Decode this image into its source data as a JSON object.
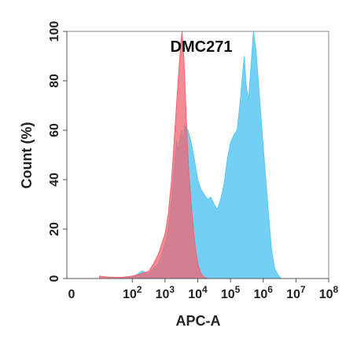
{
  "chart_data": {
    "type": "area",
    "title": "DMC271",
    "xlabel": "APC-A",
    "ylabel": "Count  (%)",
    "xscale": "log",
    "xlim_log10": [
      0,
      8
    ],
    "ylim": [
      0,
      100
    ],
    "x_ticks": [
      {
        "base": "0",
        "exp": ""
      },
      {
        "base": "10",
        "exp": "2"
      },
      {
        "base": "10",
        "exp": "3"
      },
      {
        "base": "10",
        "exp": "4"
      },
      {
        "base": "10",
        "exp": "5"
      },
      {
        "base": "10",
        "exp": "6"
      },
      {
        "base": "10",
        "exp": "7"
      },
      {
        "base": "10",
        "exp": "8"
      }
    ],
    "y_ticks": [
      "0",
      "20",
      "40",
      "60",
      "80",
      "100"
    ],
    "series": [
      {
        "color": "#5bc8f2",
        "points": [
          [
            1.0,
            0
          ],
          [
            1.5,
            0
          ],
          [
            2.0,
            0.5
          ],
          [
            2.3,
            3
          ],
          [
            2.5,
            2
          ],
          [
            2.65,
            4
          ],
          [
            2.8,
            6
          ],
          [
            2.9,
            10
          ],
          [
            3.0,
            14
          ],
          [
            3.1,
            20
          ],
          [
            3.2,
            32
          ],
          [
            3.3,
            48
          ],
          [
            3.35,
            56
          ],
          [
            3.4,
            52
          ],
          [
            3.5,
            60
          ],
          [
            3.55,
            56
          ],
          [
            3.6,
            62
          ],
          [
            3.7,
            60
          ],
          [
            3.8,
            55
          ],
          [
            3.9,
            48
          ],
          [
            4.0,
            40
          ],
          [
            4.1,
            36
          ],
          [
            4.2,
            34
          ],
          [
            4.3,
            32
          ],
          [
            4.4,
            33
          ],
          [
            4.5,
            30
          ],
          [
            4.6,
            28
          ],
          [
            4.7,
            32
          ],
          [
            4.8,
            38
          ],
          [
            4.9,
            48
          ],
          [
            5.0,
            55
          ],
          [
            5.1,
            58
          ],
          [
            5.2,
            60
          ],
          [
            5.3,
            72
          ],
          [
            5.35,
            80
          ],
          [
            5.42,
            90
          ],
          [
            5.48,
            78
          ],
          [
            5.55,
            72
          ],
          [
            5.62,
            85
          ],
          [
            5.7,
            100
          ],
          [
            5.78,
            92
          ],
          [
            5.85,
            80
          ],
          [
            5.95,
            62
          ],
          [
            6.05,
            45
          ],
          [
            6.15,
            28
          ],
          [
            6.25,
            12
          ],
          [
            6.35,
            4
          ],
          [
            6.45,
            1.5
          ],
          [
            6.55,
            0
          ],
          [
            8.0,
            0
          ]
        ]
      },
      {
        "color": "#f06470",
        "points": [
          [
            1.0,
            1
          ],
          [
            1.3,
            0.5
          ],
          [
            1.7,
            0.5
          ],
          [
            2.0,
            1
          ],
          [
            2.3,
            2
          ],
          [
            2.5,
            3
          ],
          [
            2.65,
            6
          ],
          [
            2.8,
            10
          ],
          [
            2.9,
            14
          ],
          [
            3.0,
            18
          ],
          [
            3.1,
            26
          ],
          [
            3.2,
            40
          ],
          [
            3.3,
            60
          ],
          [
            3.4,
            80
          ],
          [
            3.48,
            95
          ],
          [
            3.52,
            100
          ],
          [
            3.58,
            88
          ],
          [
            3.65,
            65
          ],
          [
            3.72,
            45
          ],
          [
            3.8,
            30
          ],
          [
            3.88,
            18
          ],
          [
            3.95,
            10
          ],
          [
            4.02,
            5
          ],
          [
            4.1,
            2
          ],
          [
            4.2,
            0.5
          ],
          [
            4.3,
            0
          ],
          [
            8.0,
            0
          ]
        ]
      }
    ]
  }
}
